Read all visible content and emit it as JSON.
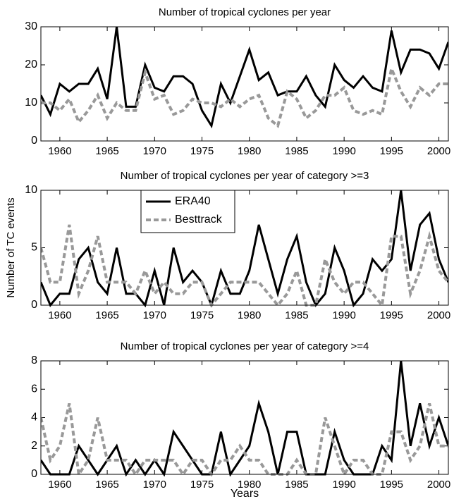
{
  "chart_data": [
    {
      "type": "line",
      "title": "Number of tropical cyclones per year",
      "x": [
        1958,
        1959,
        1960,
        1961,
        1962,
        1963,
        1964,
        1965,
        1966,
        1967,
        1968,
        1969,
        1970,
        1971,
        1972,
        1973,
        1974,
        1975,
        1976,
        1977,
        1978,
        1979,
        1980,
        1981,
        1982,
        1983,
        1984,
        1985,
        1986,
        1987,
        1988,
        1989,
        1990,
        1991,
        1992,
        1993,
        1994,
        1995,
        1996,
        1997,
        1998,
        1999,
        2000,
        2001
      ],
      "series": [
        {
          "color": "#000000",
          "dash": false,
          "values": [
            12,
            7,
            15,
            13,
            15,
            15,
            19,
            11,
            30,
            9,
            9,
            20,
            14,
            13,
            17,
            17,
            15,
            8,
            4,
            15,
            10,
            17,
            24,
            16,
            18,
            12,
            13,
            13,
            17,
            12,
            9,
            20,
            16,
            14,
            17,
            14,
            13,
            29,
            18,
            24,
            24,
            23,
            19,
            26
          ]
        },
        {
          "color": "#999999",
          "dash": true,
          "values": [
            10,
            10,
            8,
            11,
            5,
            8,
            12,
            6,
            10,
            8,
            8,
            18,
            11,
            12,
            7,
            8,
            11,
            10,
            10,
            9,
            11,
            9,
            11,
            12,
            6,
            4,
            13,
            11,
            6,
            8,
            12,
            12,
            14,
            8,
            7,
            8,
            7,
            19,
            13,
            9,
            14,
            12,
            15,
            15
          ]
        }
      ],
      "xlim": [
        1958,
        2001
      ],
      "xticks": [
        1960,
        1965,
        1970,
        1975,
        1980,
        1985,
        1990,
        1995,
        2000
      ],
      "ylim": [
        0,
        30
      ],
      "yticks": [
        0,
        10,
        20,
        30
      ]
    },
    {
      "type": "line",
      "title": "Number of tropical cyclones per year of category >=3",
      "ylabel": "Number of TC events",
      "x": [
        1958,
        1959,
        1960,
        1961,
        1962,
        1963,
        1964,
        1965,
        1966,
        1967,
        1968,
        1969,
        1970,
        1971,
        1972,
        1973,
        1974,
        1975,
        1976,
        1977,
        1978,
        1979,
        1980,
        1981,
        1982,
        1983,
        1984,
        1985,
        1986,
        1987,
        1988,
        1989,
        1990,
        1991,
        1992,
        1993,
        1994,
        1995,
        1996,
        1997,
        1998,
        1999,
        2000,
        2001
      ],
      "series": [
        {
          "name": "ERA40",
          "color": "#000000",
          "dash": false,
          "values": [
            2,
            0,
            1,
            1,
            4,
            5,
            2,
            1,
            5,
            1,
            1,
            0,
            3,
            0,
            5,
            2,
            3,
            2,
            0,
            3,
            1,
            1,
            3,
            7,
            4,
            1,
            4,
            6,
            2,
            0,
            1,
            5,
            3,
            0,
            1,
            4,
            3,
            4,
            10,
            3,
            7,
            8,
            4,
            2
          ]
        },
        {
          "name": "Besttrack",
          "color": "#999999",
          "dash": true,
          "values": [
            5,
            2,
            2,
            7,
            1,
            3,
            6,
            2,
            2,
            2,
            1,
            3,
            1,
            2,
            1,
            1,
            2,
            2,
            0,
            1,
            2,
            2,
            2,
            2,
            1,
            0,
            1,
            3,
            0,
            0,
            4,
            2,
            1,
            2,
            2,
            1,
            0,
            6,
            6,
            1,
            3,
            6,
            3,
            2
          ]
        }
      ],
      "legend": "upper-left",
      "xlim": [
        1958,
        2001
      ],
      "xticks": [
        1960,
        1965,
        1970,
        1975,
        1980,
        1985,
        1990,
        1995,
        2000
      ],
      "ylim": [
        0,
        10
      ],
      "yticks": [
        0,
        5,
        10
      ]
    },
    {
      "type": "line",
      "title": "Number of tropical cyclones per year of category >=4",
      "xlabel": "Years",
      "x": [
        1958,
        1959,
        1960,
        1961,
        1962,
        1963,
        1964,
        1965,
        1966,
        1967,
        1968,
        1969,
        1970,
        1971,
        1972,
        1973,
        1974,
        1975,
        1976,
        1977,
        1978,
        1979,
        1980,
        1981,
        1982,
        1983,
        1984,
        1985,
        1986,
        1987,
        1988,
        1989,
        1990,
        1991,
        1992,
        1993,
        1994,
        1995,
        1996,
        1997,
        1998,
        1999,
        2000,
        2001
      ],
      "series": [
        {
          "color": "#000000",
          "dash": false,
          "values": [
            1,
            0,
            0,
            0,
            2,
            1,
            0,
            1,
            2,
            0,
            1,
            0,
            1,
            0,
            3,
            2,
            1,
            0,
            0,
            3,
            0,
            1,
            2,
            5,
            3,
            0,
            3,
            3,
            0,
            0,
            0,
            3,
            1,
            0,
            0,
            0,
            2,
            1,
            8,
            2,
            5,
            2,
            4,
            2
          ]
        },
        {
          "color": "#999999",
          "dash": true,
          "values": [
            4,
            1,
            2,
            5,
            0,
            1,
            4,
            1,
            1,
            1,
            0,
            1,
            1,
            1,
            1,
            0,
            1,
            1,
            0,
            1,
            1,
            2,
            1,
            1,
            0,
            0,
            0,
            1,
            0,
            0,
            4,
            2,
            0,
            1,
            1,
            0,
            0,
            3,
            3,
            1,
            2,
            5,
            2,
            2
          ]
        }
      ],
      "xlim": [
        1958,
        2001
      ],
      "xticks": [
        1960,
        1965,
        1970,
        1975,
        1980,
        1985,
        1990,
        1995,
        2000
      ],
      "ylim": [
        0,
        8
      ],
      "yticks": [
        0,
        2,
        4,
        6,
        8
      ]
    }
  ]
}
